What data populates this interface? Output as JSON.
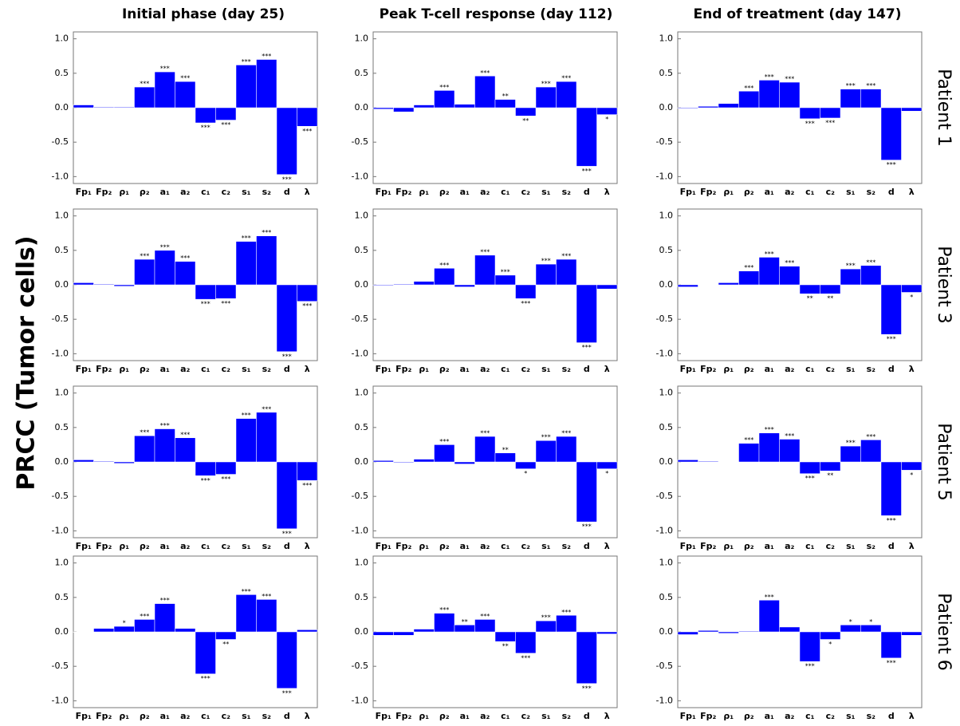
{
  "ylabel": "PRCC (Tumor cells)",
  "column_titles": [
    "Initial phase (day 25)",
    "Peak T-cell response (day 112)",
    "End of treatment (day 147)"
  ],
  "row_labels": [
    "Patient 1",
    "Patient 3",
    "Patient 5",
    "Patient 6"
  ],
  "chart_data": [
    {
      "type": "bar",
      "categories": [
        "Fp₁",
        "Fp₂",
        "ρ₁",
        "ρ₂",
        "a₁",
        "a₂",
        "c₁",
        "c₂",
        "s₁",
        "s₂",
        "d",
        "λ"
      ],
      "values": [
        0.04,
        0.01,
        0.01,
        0.3,
        0.52,
        0.38,
        -0.22,
        -0.18,
        0.62,
        0.7,
        -0.97,
        -0.27
      ],
      "significance": [
        null,
        null,
        null,
        "***",
        "***",
        "***",
        "***",
        "***",
        "***",
        "***",
        "***",
        "***"
      ],
      "color": "#0000ff",
      "ylim": [
        -1.1,
        1.1
      ],
      "yticks": [
        {
          "value": -1,
          "label": "-1.0"
        },
        {
          "value": -0.5,
          "label": "-0.5"
        },
        {
          "value": 0,
          "label": "0.0"
        },
        {
          "value": 0.5,
          "label": "0.5"
        },
        {
          "value": 1,
          "label": "1.0"
        }
      ]
    },
    {
      "type": "bar",
      "categories": [
        "Fp₁",
        "Fp₂",
        "ρ₁",
        "ρ₂",
        "a₁",
        "a₂",
        "c₁",
        "c₂",
        "s₁",
        "s₂",
        "d",
        "λ"
      ],
      "values": [
        -0.02,
        -0.06,
        0.04,
        0.25,
        0.05,
        0.46,
        0.12,
        -0.12,
        0.3,
        0.38,
        -0.85,
        -0.1
      ],
      "significance": [
        null,
        null,
        null,
        "***",
        null,
        "***",
        "**",
        "**",
        "***",
        "***",
        "***",
        "*"
      ],
      "color": "#0000ff",
      "ylim": [
        -1.1,
        1.1
      ],
      "yticks": [
        {
          "value": -1,
          "label": "-1.0"
        },
        {
          "value": -0.5,
          "label": "-0.5"
        },
        {
          "value": 0,
          "label": "0.0"
        },
        {
          "value": 0.5,
          "label": "0.5"
        },
        {
          "value": 1,
          "label": "1.0"
        }
      ]
    },
    {
      "type": "bar",
      "categories": [
        "Fp₁",
        "Fp₂",
        "ρ₁",
        "ρ₂",
        "a₁",
        "a₂",
        "c₁",
        "c₂",
        "s₁",
        "s₂",
        "d",
        "λ"
      ],
      "values": [
        -0.01,
        0.02,
        0.06,
        0.24,
        0.4,
        0.37,
        -0.16,
        -0.15,
        0.27,
        0.27,
        -0.76,
        -0.05
      ],
      "significance": [
        null,
        null,
        null,
        "***",
        "***",
        "***",
        "***",
        "***",
        "***",
        "***",
        "***",
        null
      ],
      "color": "#0000ff",
      "ylim": [
        -1.1,
        1.1
      ],
      "yticks": [
        {
          "value": -1,
          "label": "-1.0"
        },
        {
          "value": -0.5,
          "label": "-0.5"
        },
        {
          "value": 0,
          "label": "0.0"
        },
        {
          "value": 0.5,
          "label": "0.5"
        },
        {
          "value": 1,
          "label": "1.0"
        }
      ]
    },
    {
      "type": "bar",
      "categories": [
        "Fp₁",
        "Fp₂",
        "ρ₁",
        "ρ₂",
        "a₁",
        "a₂",
        "c₁",
        "c₂",
        "s₁",
        "s₂",
        "d",
        "λ"
      ],
      "values": [
        0.03,
        0.01,
        -0.02,
        0.37,
        0.5,
        0.34,
        -0.21,
        -0.2,
        0.63,
        0.71,
        -0.97,
        -0.24
      ],
      "significance": [
        null,
        null,
        null,
        "***",
        "***",
        "***",
        "***",
        "***",
        "***",
        "***",
        "***",
        "***"
      ],
      "color": "#0000ff",
      "ylim": [
        -1.1,
        1.1
      ],
      "yticks": [
        {
          "value": -1,
          "label": "-1.0"
        },
        {
          "value": -0.5,
          "label": "-0.5"
        },
        {
          "value": 0,
          "label": "0.0"
        },
        {
          "value": 0.5,
          "label": "0.5"
        },
        {
          "value": 1,
          "label": "1.0"
        }
      ]
    },
    {
      "type": "bar",
      "categories": [
        "Fp₁",
        "Fp₂",
        "ρ₁",
        "ρ₂",
        "a₁",
        "a₂",
        "c₁",
        "c₂",
        "s₁",
        "s₂",
        "d",
        "λ"
      ],
      "values": [
        -0.01,
        0.01,
        0.05,
        0.24,
        -0.03,
        0.43,
        0.14,
        -0.2,
        0.3,
        0.37,
        -0.84,
        -0.06
      ],
      "significance": [
        null,
        null,
        null,
        "***",
        null,
        "***",
        "***",
        "***",
        "***",
        "***",
        "***",
        null
      ],
      "color": "#0000ff",
      "ylim": [
        -1.1,
        1.1
      ],
      "yticks": [
        {
          "value": -1,
          "label": "-1.0"
        },
        {
          "value": -0.5,
          "label": "-0.5"
        },
        {
          "value": 0,
          "label": "0.0"
        },
        {
          "value": 0.5,
          "label": "0.5"
        },
        {
          "value": 1,
          "label": "1.0"
        }
      ]
    },
    {
      "type": "bar",
      "categories": [
        "Fp₁",
        "Fp₂",
        "ρ₁",
        "ρ₂",
        "a₁",
        "a₂",
        "c₁",
        "c₂",
        "s₁",
        "s₂",
        "d",
        "λ"
      ],
      "values": [
        -0.03,
        0.0,
        0.03,
        0.2,
        0.4,
        0.27,
        -0.13,
        -0.13,
        0.23,
        0.28,
        -0.72,
        -0.11
      ],
      "significance": [
        null,
        null,
        null,
        "***",
        "***",
        "***",
        "**",
        "**",
        "***",
        "***",
        "***",
        "*"
      ],
      "color": "#0000ff",
      "ylim": [
        -1.1,
        1.1
      ],
      "yticks": [
        {
          "value": -1,
          "label": "-1.0"
        },
        {
          "value": -0.5,
          "label": "-0.5"
        },
        {
          "value": 0,
          "label": "0.0"
        },
        {
          "value": 0.5,
          "label": "0.5"
        },
        {
          "value": 1,
          "label": "1.0"
        }
      ]
    },
    {
      "type": "bar",
      "categories": [
        "Fp₁",
        "Fp₂",
        "ρ₁",
        "ρ₂",
        "a₁",
        "a₂",
        "c₁",
        "c₂",
        "s₁",
        "s₂",
        "d",
        "λ"
      ],
      "values": [
        0.03,
        0.01,
        -0.02,
        0.38,
        0.48,
        0.35,
        -0.2,
        -0.18,
        0.63,
        0.72,
        -0.97,
        -0.27
      ],
      "significance": [
        null,
        null,
        null,
        "***",
        "***",
        "***",
        "***",
        "***",
        "***",
        "***",
        "***",
        "***"
      ],
      "color": "#0000ff",
      "ylim": [
        -1.1,
        1.1
      ],
      "yticks": [
        {
          "value": -1,
          "label": "-1.0"
        },
        {
          "value": -0.5,
          "label": "-0.5"
        },
        {
          "value": 0,
          "label": "0.0"
        },
        {
          "value": 0.5,
          "label": "0.5"
        },
        {
          "value": 1,
          "label": "1.0"
        }
      ]
    },
    {
      "type": "bar",
      "categories": [
        "Fp₁",
        "Fp₂",
        "ρ₁",
        "ρ₂",
        "a₁",
        "a₂",
        "c₁",
        "c₂",
        "s₁",
        "s₂",
        "d",
        "λ"
      ],
      "values": [
        0.02,
        -0.01,
        0.04,
        0.25,
        -0.03,
        0.37,
        0.13,
        -0.1,
        0.31,
        0.37,
        -0.87,
        -0.1
      ],
      "significance": [
        null,
        null,
        null,
        "***",
        null,
        "***",
        "**",
        "*",
        "***",
        "***",
        "***",
        "*"
      ],
      "color": "#0000ff",
      "ylim": [
        -1.1,
        1.1
      ],
      "yticks": [
        {
          "value": -1,
          "label": "-1.0"
        },
        {
          "value": -0.5,
          "label": "-0.5"
        },
        {
          "value": 0,
          "label": "0.0"
        },
        {
          "value": 0.5,
          "label": "0.5"
        },
        {
          "value": 1,
          "label": "1.0"
        }
      ]
    },
    {
      "type": "bar",
      "categories": [
        "Fp₁",
        "Fp₂",
        "ρ₁",
        "ρ₂",
        "a₁",
        "a₂",
        "c₁",
        "c₂",
        "s₁",
        "s₂",
        "d",
        "λ"
      ],
      "values": [
        0.03,
        0.01,
        0.0,
        0.27,
        0.42,
        0.33,
        -0.17,
        -0.13,
        0.23,
        0.32,
        -0.78,
        -0.12
      ],
      "significance": [
        null,
        null,
        null,
        "***",
        "***",
        "***",
        "***",
        "**",
        "***",
        "***",
        "***",
        "*"
      ],
      "color": "#0000ff",
      "ylim": [
        -1.1,
        1.1
      ],
      "yticks": [
        {
          "value": -1,
          "label": "-1.0"
        },
        {
          "value": -0.5,
          "label": "-0.5"
        },
        {
          "value": 0,
          "label": "0.0"
        },
        {
          "value": 0.5,
          "label": "0.5"
        },
        {
          "value": 1,
          "label": "1.0"
        }
      ]
    },
    {
      "type": "bar",
      "categories": [
        "Fp₁",
        "Fp₂",
        "ρ₁",
        "ρ₂",
        "a₁",
        "a₂",
        "c₁",
        "c₂",
        "s₁",
        "s₂",
        "d",
        "λ"
      ],
      "values": [
        0.0,
        0.05,
        0.08,
        0.18,
        0.41,
        0.05,
        -0.61,
        -0.11,
        0.54,
        0.47,
        -0.82,
        0.03
      ],
      "significance": [
        null,
        null,
        "*",
        "***",
        "***",
        null,
        "***",
        "**",
        "***",
        "***",
        "***",
        null
      ],
      "color": "#0000ff",
      "ylim": [
        -1.1,
        1.1
      ],
      "yticks": [
        {
          "value": -1,
          "label": "-1.0"
        },
        {
          "value": -0.5,
          "label": "-0.5"
        },
        {
          "value": 0,
          "label": "0.0"
        },
        {
          "value": 0.5,
          "label": "0.5"
        },
        {
          "value": 1,
          "label": "1.0"
        }
      ]
    },
    {
      "type": "bar",
      "categories": [
        "Fp₁",
        "Fp₂",
        "ρ₁",
        "ρ₂",
        "a₁",
        "a₂",
        "c₁",
        "c₂",
        "s₁",
        "s₂",
        "d",
        "λ"
      ],
      "values": [
        -0.05,
        -0.05,
        0.04,
        0.27,
        0.1,
        0.18,
        -0.14,
        -0.31,
        0.16,
        0.24,
        -0.75,
        -0.03
      ],
      "significance": [
        null,
        null,
        null,
        "***",
        "**",
        "***",
        "**",
        "***",
        "***",
        "***",
        "***",
        null
      ],
      "color": "#0000ff",
      "ylim": [
        -1.1,
        1.1
      ],
      "yticks": [
        {
          "value": -1,
          "label": "-1.0"
        },
        {
          "value": -0.5,
          "label": "-0.5"
        },
        {
          "value": 0,
          "label": "0.0"
        },
        {
          "value": 0.5,
          "label": "0.5"
        },
        {
          "value": 1,
          "label": "1.0"
        }
      ]
    },
    {
      "type": "bar",
      "categories": [
        "Fp₁",
        "Fp₂",
        "ρ₁",
        "ρ₂",
        "a₁",
        "a₂",
        "c₁",
        "c₂",
        "s₁",
        "s₂",
        "d",
        "λ"
      ],
      "values": [
        -0.04,
        0.02,
        -0.02,
        0.01,
        0.46,
        0.07,
        -0.43,
        -0.11,
        0.1,
        0.1,
        -0.38,
        -0.05
      ],
      "significance": [
        null,
        null,
        null,
        null,
        "***",
        null,
        "***",
        "*",
        "*",
        "*",
        "***",
        null
      ],
      "color": "#0000ff",
      "ylim": [
        -1.1,
        1.1
      ],
      "yticks": [
        {
          "value": -1,
          "label": "-1.0"
        },
        {
          "value": -0.5,
          "label": "-0.5"
        },
        {
          "value": 0,
          "label": "0.0"
        },
        {
          "value": 0.5,
          "label": "0.5"
        },
        {
          "value": 1,
          "label": "1.0"
        }
      ]
    }
  ]
}
